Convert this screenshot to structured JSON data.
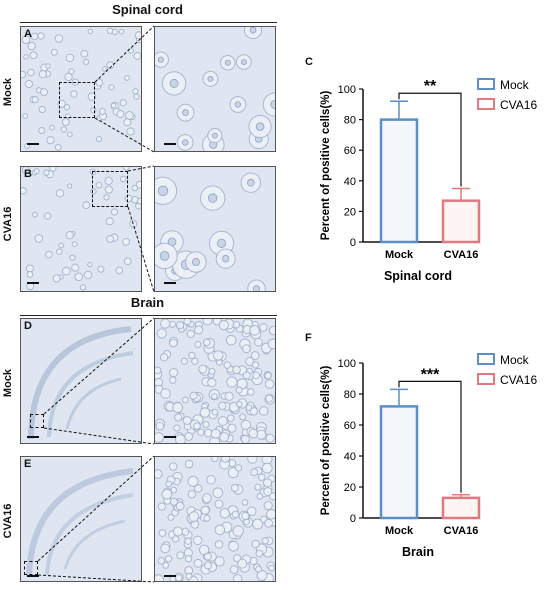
{
  "sections": {
    "spinal": "Spinal cord",
    "brain": "Brain"
  },
  "panels": {
    "A": "A",
    "B": "B",
    "C": "C",
    "D": "D",
    "E": "E",
    "F": "F"
  },
  "row_labels": {
    "mock": "Mock",
    "cva16": "CVA16"
  },
  "colors": {
    "mock": "#5b8fc7",
    "cva16": "#e07a7f",
    "tissue": "#dfe6f1",
    "cell": "#b9c7dd"
  },
  "chart_data": [
    {
      "id": "C",
      "type": "bar",
      "categories": [
        "Mock",
        "CVA16"
      ],
      "values": [
        80,
        27
      ],
      "errors": [
        12,
        8
      ],
      "ylabel": "Percent of  positive cells(%)",
      "xlabel": "Spinal cord",
      "ylim": [
        0,
        100
      ],
      "yticks": [
        0,
        20,
        40,
        60,
        80,
        100
      ],
      "significance": "**",
      "legend": [
        "Mock",
        "CVA16"
      ],
      "legend_position": "top-right"
    },
    {
      "id": "F",
      "type": "bar",
      "categories": [
        "Mock",
        "CVA16"
      ],
      "values": [
        72,
        13
      ],
      "errors": [
        11,
        2
      ],
      "ylabel": "Percent of  positive cells(%)",
      "xlabel": "Brain",
      "ylim": [
        0,
        100
      ],
      "yticks": [
        0,
        20,
        40,
        60,
        80,
        100
      ],
      "significance": "***",
      "legend": [
        "Mock",
        "CVA16"
      ],
      "legend_position": "top-right"
    }
  ]
}
